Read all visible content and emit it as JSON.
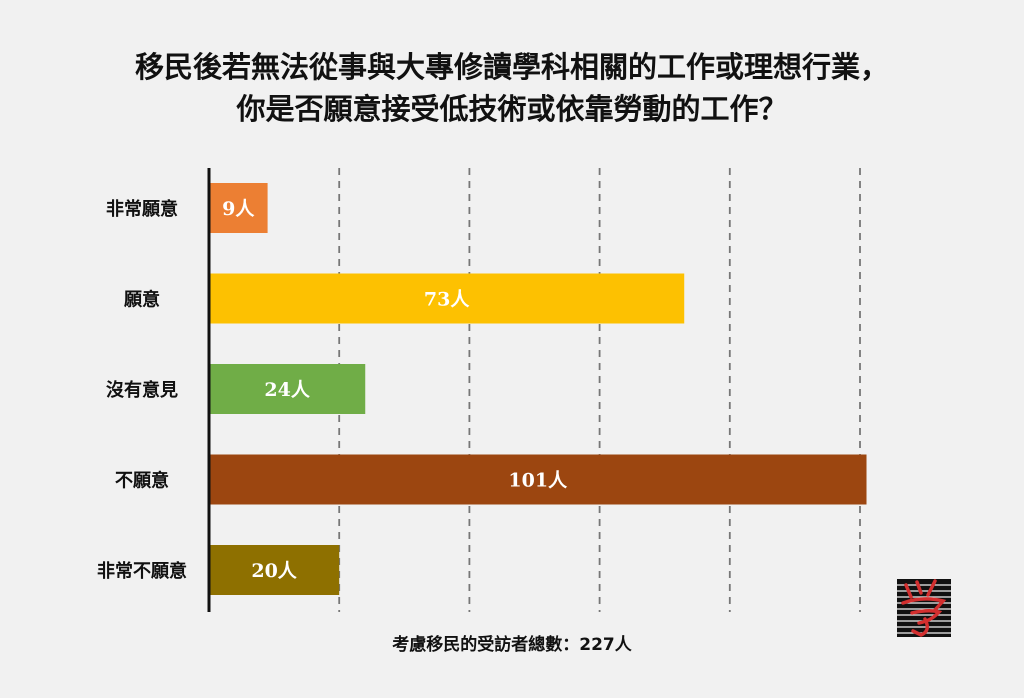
{
  "chart_data": {
    "type": "bar",
    "orientation": "horizontal",
    "title": [
      "移民後若無法從事與大專修讀學科相關的工作或理想行業，",
      "你是否願意接受低技術或依靠勞動的工作？"
    ],
    "categories": [
      "非常願意",
      "願意",
      "沒有意見",
      "不願意",
      "非常不願意"
    ],
    "values": [
      9,
      73,
      24,
      101,
      20
    ],
    "value_labels": [
      "9人",
      "73人",
      "24人",
      "101人",
      "20人"
    ],
    "colors": [
      "#ec7f33",
      "#fdc101",
      "#70ad47",
      "#9c4610",
      "#8e7000"
    ],
    "xlim": [
      0,
      100
    ],
    "gridlines": [
      20,
      40,
      60,
      80,
      100
    ],
    "grid": true,
    "note": "考慮移民的受訪者總數：227人"
  },
  "logo": {
    "icon": "calligraphy-seal-icon",
    "colors": [
      "#111111",
      "#d32f2f"
    ]
  }
}
